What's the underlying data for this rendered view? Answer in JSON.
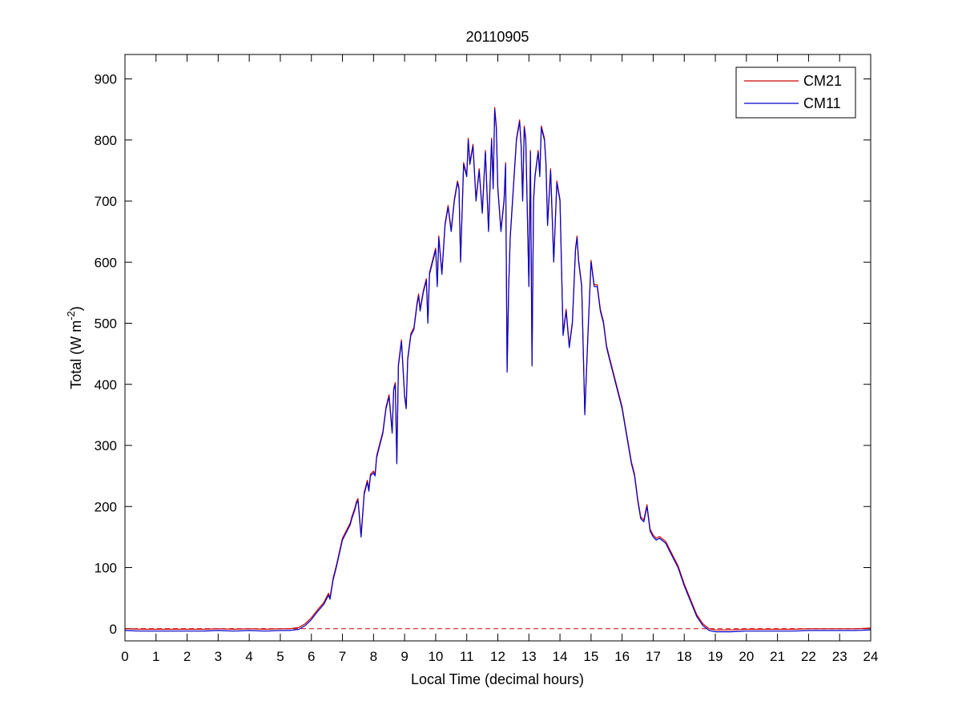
{
  "chart_data": {
    "type": "line",
    "title": "20110905",
    "xlabel": "Local Time (decimal hours)",
    "ylabel": {
      "main": "Total (W m",
      "exponent": "-2",
      "close": ")"
    },
    "xlim": [
      0,
      24
    ],
    "ylim": [
      -20,
      940
    ],
    "xticks": [
      0,
      1,
      2,
      3,
      4,
      5,
      6,
      7,
      8,
      9,
      10,
      11,
      12,
      13,
      14,
      15,
      16,
      17,
      18,
      19,
      20,
      21,
      22,
      23,
      24
    ],
    "yticks": [
      0,
      100,
      200,
      300,
      400,
      500,
      600,
      700,
      800,
      900
    ],
    "legend_position": "top-right",
    "grid": false,
    "zero_reference": {
      "y": 0,
      "color": "#cc0000",
      "style": "dashed"
    },
    "series": [
      {
        "name": "CM21",
        "color": "#cc0000",
        "offset": 3
      },
      {
        "name": "CM11",
        "color": "#0000cc",
        "offset": 0
      }
    ],
    "x": [
      0,
      0.5,
      1,
      1.5,
      2,
      2.5,
      3,
      3.5,
      4,
      4.5,
      5,
      5.3,
      5.6,
      5.8,
      6,
      6.2,
      6.4,
      6.55,
      6.6,
      6.7,
      6.8,
      7,
      7.2,
      7.25,
      7.3,
      7.4,
      7.45,
      7.5,
      7.6,
      7.7,
      7.8,
      7.85,
      7.9,
      8,
      8.05,
      8.1,
      8.2,
      8.3,
      8.4,
      8.5,
      8.6,
      8.65,
      8.7,
      8.75,
      8.8,
      8.9,
      9,
      9.05,
      9.1,
      9.2,
      9.3,
      9.4,
      9.45,
      9.5,
      9.6,
      9.7,
      9.75,
      9.8,
      9.9,
      10,
      10.05,
      10.1,
      10.2,
      10.3,
      10.4,
      10.5,
      10.6,
      10.7,
      10.75,
      10.8,
      10.9,
      11,
      11.05,
      11.1,
      11.2,
      11.3,
      11.4,
      11.5,
      11.6,
      11.7,
      11.8,
      11.85,
      11.9,
      11.95,
      12,
      12.1,
      12.2,
      12.25,
      12.3,
      12.35,
      12.4,
      12.5,
      12.6,
      12.7,
      12.75,
      12.8,
      12.85,
      12.9,
      13,
      13.05,
      13.1,
      13.15,
      13.2,
      13.3,
      13.35,
      13.4,
      13.5,
      13.55,
      13.6,
      13.7,
      13.8,
      13.9,
      14,
      14.1,
      14.2,
      14.3,
      14.4,
      14.5,
      14.55,
      14.6,
      14.7,
      14.8,
      14.9,
      15,
      15.1,
      15.2,
      15.3,
      15.4,
      15.5,
      15.6,
      15.7,
      15.8,
      15.9,
      16,
      16.1,
      16.2,
      16.3,
      16.4,
      16.5,
      16.6,
      16.7,
      16.8,
      16.9,
      17,
      17.1,
      17.2,
      17.4,
      17.6,
      17.8,
      18,
      18.2,
      18.4,
      18.6,
      18.8,
      19,
      19.5,
      20,
      20.5,
      21,
      21.5,
      22,
      22.5,
      23,
      23.5,
      24
    ],
    "y": [
      -3,
      -4,
      -4,
      -4,
      -4,
      -4,
      -3,
      -4,
      -3,
      -4,
      -3,
      -3,
      -1,
      5,
      15,
      28,
      40,
      55,
      48,
      80,
      100,
      145,
      165,
      170,
      180,
      195,
      205,
      210,
      150,
      220,
      240,
      225,
      250,
      255,
      250,
      280,
      300,
      320,
      360,
      380,
      320,
      390,
      400,
      270,
      430,
      470,
      380,
      360,
      440,
      480,
      490,
      530,
      545,
      520,
      550,
      570,
      500,
      580,
      600,
      620,
      560,
      640,
      580,
      660,
      690,
      650,
      700,
      730,
      720,
      600,
      760,
      740,
      800,
      760,
      790,
      700,
      750,
      680,
      780,
      650,
      800,
      720,
      850,
      820,
      720,
      650,
      700,
      760,
      420,
      560,
      640,
      720,
      800,
      830,
      790,
      700,
      820,
      800,
      560,
      780,
      430,
      700,
      740,
      780,
      740,
      820,
      800,
      760,
      660,
      750,
      600,
      730,
      700,
      480,
      520,
      460,
      500,
      620,
      640,
      600,
      560,
      350,
      480,
      600,
      560,
      560,
      520,
      500,
      460,
      440,
      420,
      400,
      380,
      360,
      330,
      300,
      270,
      250,
      210,
      180,
      175,
      200,
      160,
      150,
      145,
      148,
      140,
      120,
      100,
      70,
      45,
      20,
      5,
      -3,
      -5,
      -5,
      -4,
      -4,
      -4,
      -4,
      -3,
      -3,
      -3,
      -3,
      -2
    ]
  }
}
